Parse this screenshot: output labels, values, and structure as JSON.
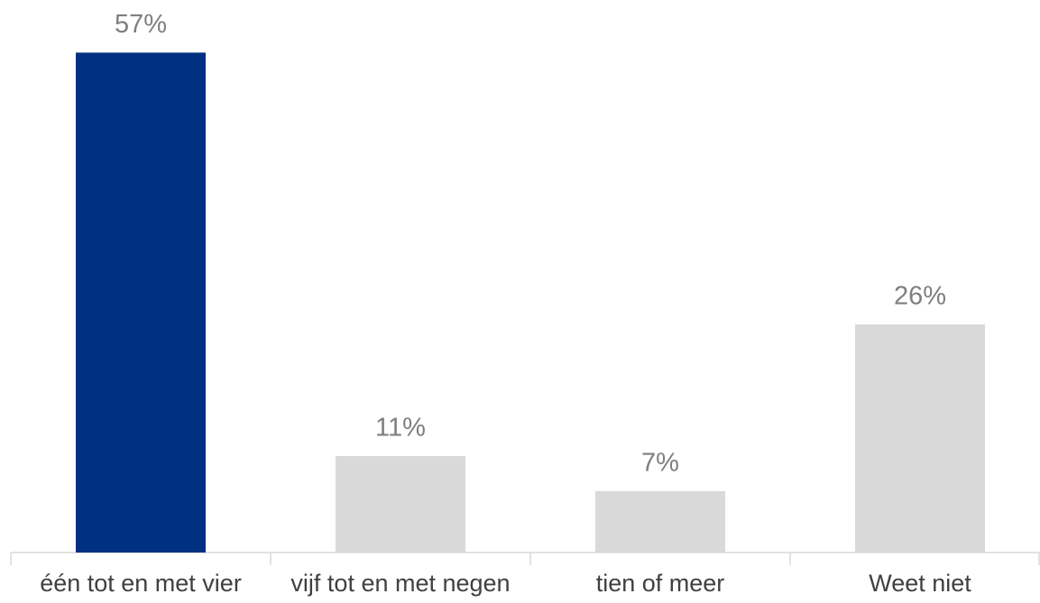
{
  "chart_data": {
    "type": "bar",
    "categories": [
      "één tot en met vier",
      "vijf tot en met negen",
      "tien of meer",
      "Weet niet"
    ],
    "values": [
      57,
      11,
      7,
      26
    ],
    "value_labels": [
      "57%",
      "11%",
      "7%",
      "26%"
    ],
    "colors": [
      "#003082",
      "#d9d9d9",
      "#d9d9d9",
      "#d9d9d9"
    ],
    "ylim": [
      0,
      63
    ]
  }
}
